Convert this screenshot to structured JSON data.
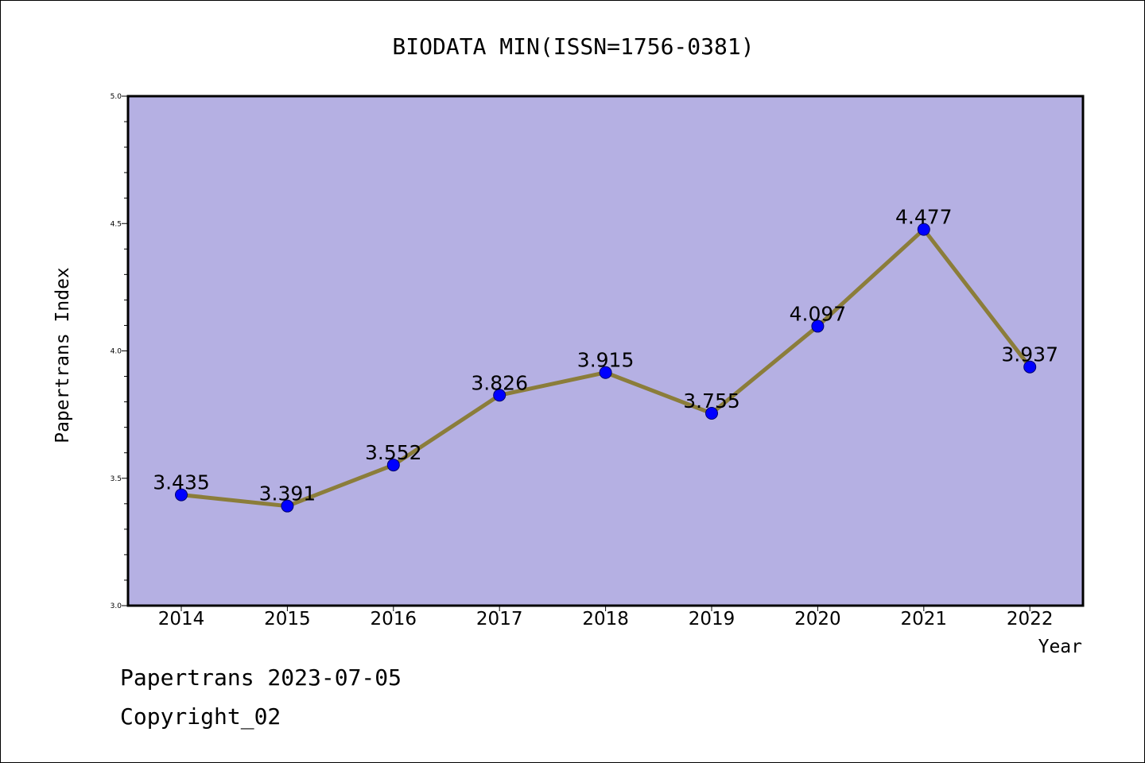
{
  "chart_data": {
    "type": "line",
    "title": "BIODATA MIN(ISSN=1756-0381)",
    "xlabel": "Year",
    "ylabel": "Papertrans Index",
    "categories": [
      "2014",
      "2015",
      "2016",
      "2017",
      "2018",
      "2019",
      "2020",
      "2021",
      "2022"
    ],
    "series": [
      {
        "values": [
          3.435,
          3.391,
          3.552,
          3.826,
          3.915,
          3.755,
          4.097,
          4.477,
          3.937
        ],
        "labels": [
          "3.435",
          "3.391",
          "3.552",
          "3.826",
          "3.915",
          "3.755",
          "4.097",
          "4.477",
          "3.937"
        ]
      }
    ],
    "ylim": [
      3.0,
      5.0
    ],
    "yticks": [
      "3.0",
      "3.5",
      "4.0",
      "4.5",
      "5.0"
    ],
    "grid": false,
    "colors": {
      "plot_background": "#b5b0e3",
      "line": "#8b7d3a",
      "marker": "#0000ff"
    }
  },
  "footer": {
    "line1": "Papertrans 2023-07-05",
    "line2": "Copyright_02"
  }
}
